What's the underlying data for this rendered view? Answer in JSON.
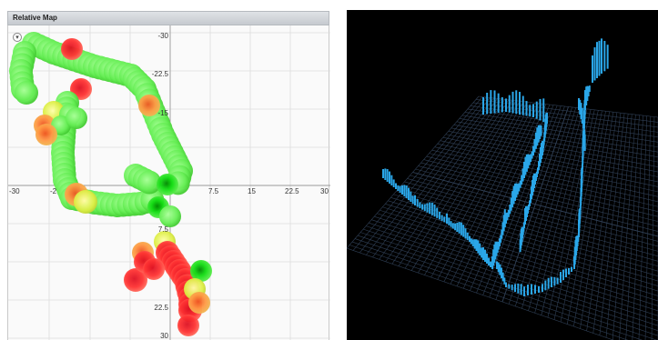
{
  "left_panel": {
    "title": "Relative Map",
    "collapse_glyph": "▾",
    "x_axis_ticks": [
      "-30",
      "-2",
      "7.5",
      "15",
      "22.5",
      "30"
    ],
    "y_axis_ticks": [
      "-30",
      "-22.5",
      "-15",
      "7.5",
      "22.5",
      "30"
    ],
    "marker_colors": {
      "good": "#66ee55",
      "bright_good": "#11dd11",
      "warning": "#ddee44",
      "medium": "#ff9944",
      "bad": "#ff3333"
    }
  },
  "right_panel": {
    "view": "3d-point-cloud",
    "background": "#000000",
    "grid_color": "#2f3f55",
    "bar_color": "#2aa6e8"
  }
}
